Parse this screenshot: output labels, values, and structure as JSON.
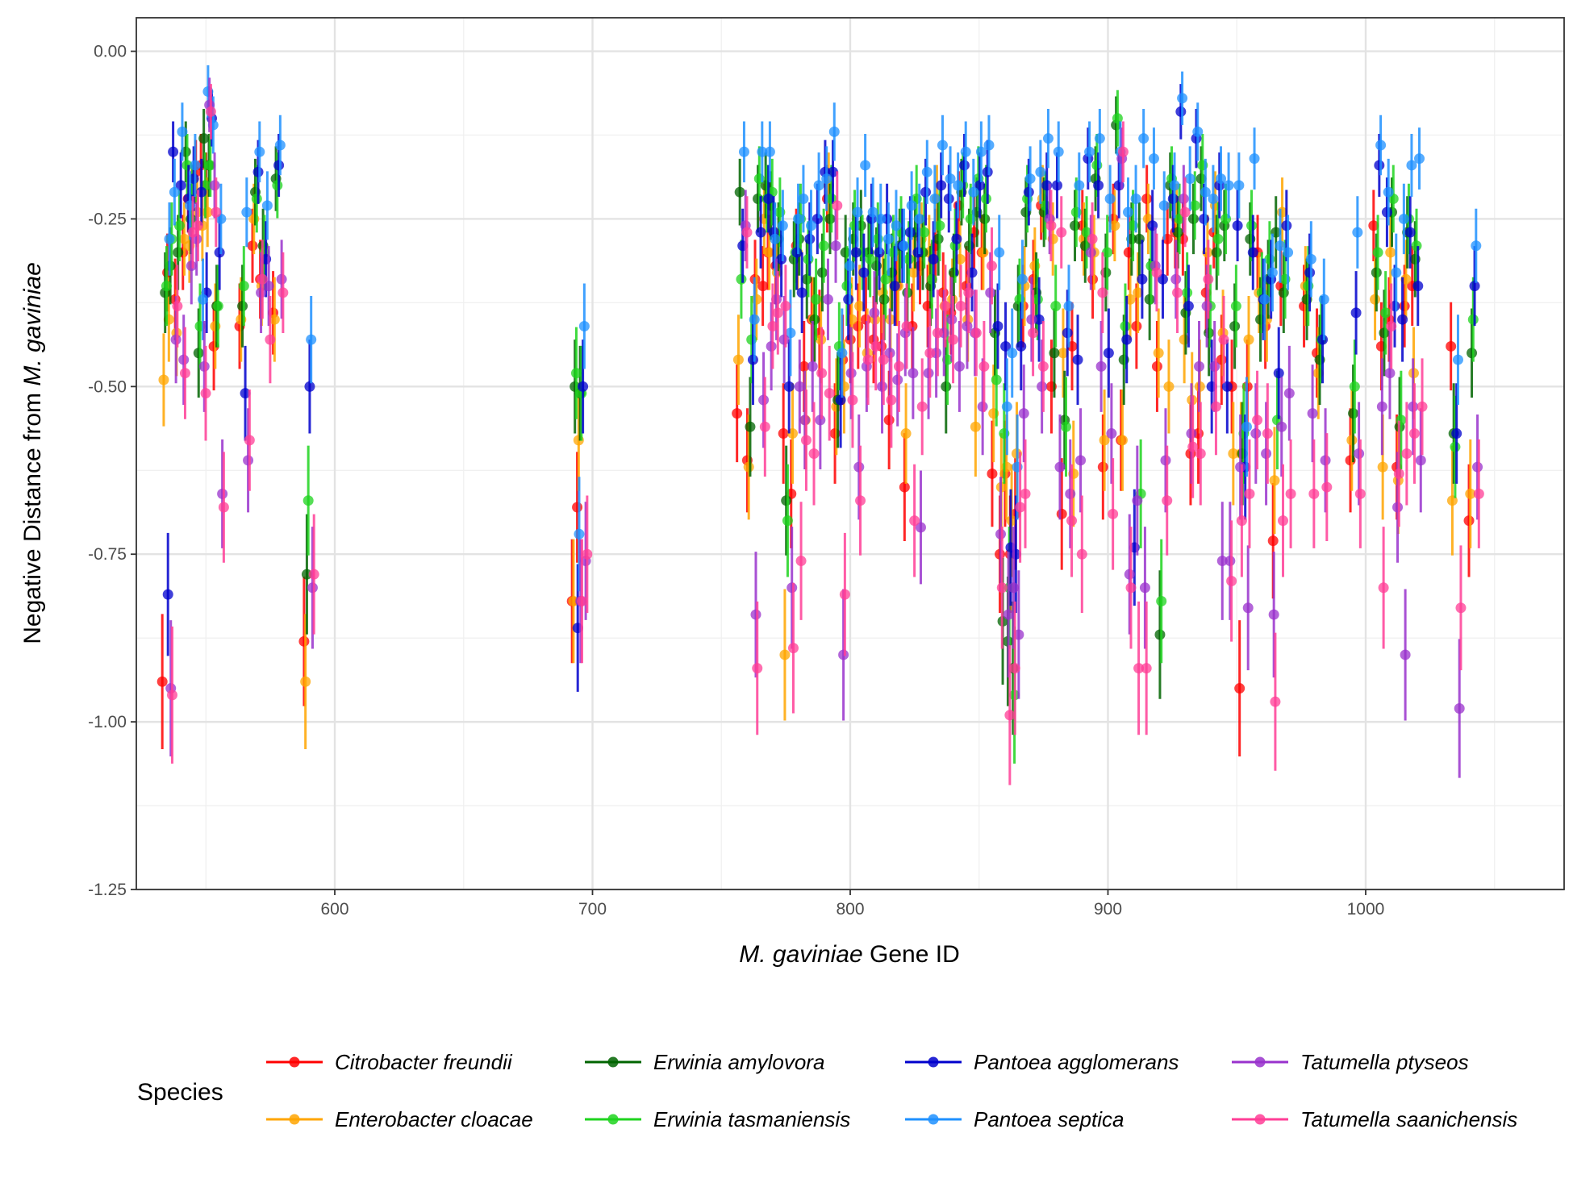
{
  "chart_data": {
    "type": "scatter",
    "description_style": "point estimates with vertical error bars",
    "xlabel_italic": "M. gaviniae",
    "xlabel_rest": "Gene ID",
    "ylabel_plain": "Negative Distance from",
    "ylabel_italic": "M. gaviniae",
    "xlim": [
      523,
      1077
    ],
    "ylim": [
      -1.25,
      0.05
    ],
    "x_ticks": [
      600,
      700,
      800,
      900,
      1000
    ],
    "y_ticks": [
      0.0,
      -0.25,
      -0.5,
      -0.75,
      -1.0,
      -1.25
    ],
    "y_tick_labels": [
      "0.00",
      "-0.25",
      "-0.50",
      "-0.75",
      "-1.00",
      "-1.25"
    ],
    "grid": true,
    "legend_position": "bottom",
    "legend_title": "Species",
    "gene_x": [
      535,
      537,
      540,
      543,
      545,
      548,
      550,
      552,
      555,
      565,
      570,
      573,
      578,
      590,
      694,
      696,
      758,
      762,
      765,
      768,
      770,
      773,
      776,
      779,
      781,
      784,
      787,
      790,
      793,
      796,
      799,
      802,
      805,
      808,
      811,
      814,
      817,
      820,
      823,
      826,
      829,
      832,
      835,
      838,
      841,
      844,
      847,
      850,
      853,
      857,
      860,
      862,
      864,
      866,
      869,
      873,
      876,
      880,
      884,
      888,
      892,
      896,
      900,
      904,
      907,
      910,
      913,
      917,
      921,
      925,
      928,
      931,
      934,
      937,
      940,
      943,
      946,
      950,
      953,
      956,
      960,
      963,
      966,
      969,
      978,
      983,
      996,
      1005,
      1008,
      1011,
      1014,
      1017,
      1020,
      1035,
      1042
    ],
    "series": [
      {
        "name": "Citrobacter freundii",
        "color": "#FF0000",
        "values": [
          -0.94,
          -0.33,
          -0.37,
          -0.3,
          -0.22,
          -0.18,
          -0.17,
          -0.2,
          -0.44,
          -0.41,
          -0.29,
          -0.34,
          -0.39,
          -0.88,
          -0.82,
          -0.68,
          -0.54,
          -0.61,
          -0.34,
          -0.35,
          -0.3,
          -0.32,
          -0.57,
          -0.66,
          -0.29,
          -0.47,
          -0.4,
          -0.42,
          -0.22,
          -0.57,
          -0.46,
          -0.43,
          -0.41,
          -0.4,
          -0.43,
          -0.44,
          -0.55,
          -0.35,
          -0.65,
          -0.41,
          -0.32,
          -0.38,
          -0.29,
          -0.36,
          -0.39,
          -0.23,
          -0.35,
          -0.27,
          -0.3,
          -0.63,
          -0.75,
          -0.63,
          -0.75,
          -0.69,
          -0.38,
          -0.34,
          -0.23,
          -0.5,
          -0.69,
          -0.44,
          -0.26,
          -0.34,
          -0.62,
          -0.25,
          -0.58,
          -0.3,
          -0.41,
          -0.22,
          -0.47,
          -0.28,
          -0.27,
          -0.28,
          -0.6,
          -0.57,
          -0.36,
          -0.27,
          -0.46,
          -0.5,
          -0.95,
          -0.5,
          -0.3,
          -0.41,
          -0.73,
          -0.35,
          -0.38,
          -0.45,
          -0.61,
          -0.26,
          -0.44,
          -0.4,
          -0.62,
          -0.38,
          -0.35,
          -0.44,
          -0.7
        ]
      },
      {
        "name": "Enterobacter cloacae",
        "color": "#FFA500",
        "values": [
          -0.49,
          -0.4,
          -0.42,
          -0.28,
          -0.29,
          -0.24,
          -0.26,
          -0.24,
          -0.41,
          -0.4,
          -0.25,
          -0.35,
          -0.4,
          -0.94,
          -0.82,
          -0.58,
          -0.46,
          -0.62,
          -0.37,
          -0.25,
          -0.3,
          -0.33,
          -0.9,
          -0.57,
          -0.3,
          -0.55,
          -0.4,
          -0.43,
          -0.2,
          -0.53,
          -0.5,
          -0.4,
          -0.38,
          -0.45,
          -0.4,
          -0.36,
          -0.4,
          -0.35,
          -0.57,
          -0.33,
          -0.28,
          -0.3,
          -0.22,
          -0.38,
          -0.37,
          -0.31,
          -0.4,
          -0.56,
          -0.3,
          -0.54,
          -0.65,
          -0.62,
          -0.7,
          -0.6,
          -0.35,
          -0.32,
          -0.22,
          -0.28,
          -0.45,
          -0.63,
          -0.28,
          -0.3,
          -0.58,
          -0.26,
          -0.58,
          -0.37,
          -0.36,
          -0.25,
          -0.45,
          -0.5,
          -0.25,
          -0.43,
          -0.52,
          -0.5,
          -0.3,
          -0.23,
          -0.42,
          -0.6,
          -0.6,
          -0.43,
          -0.36,
          -0.4,
          -0.64,
          -0.24,
          -0.35,
          -0.48,
          -0.58,
          -0.37,
          -0.62,
          -0.3,
          -0.64,
          -0.34,
          -0.48,
          -0.67,
          -0.66
        ]
      },
      {
        "name": "Erwinia amylovora",
        "color": "#006400",
        "values": [
          -0.36,
          -0.32,
          -0.3,
          -0.15,
          -0.25,
          -0.45,
          -0.13,
          -0.17,
          -0.38,
          -0.38,
          -0.21,
          -0.29,
          -0.19,
          -0.78,
          -0.5,
          -0.51,
          -0.21,
          -0.56,
          -0.22,
          -0.2,
          -0.23,
          -0.28,
          -0.67,
          -0.31,
          -0.28,
          -0.34,
          -0.4,
          -0.33,
          -0.25,
          -0.52,
          -0.3,
          -0.28,
          -0.26,
          -0.3,
          -0.32,
          -0.37,
          -0.33,
          -0.29,
          -0.36,
          -0.27,
          -0.3,
          -0.35,
          -0.28,
          -0.5,
          -0.33,
          -0.21,
          -0.29,
          -0.24,
          -0.25,
          -0.42,
          -0.85,
          -0.88,
          -0.92,
          -0.38,
          -0.24,
          -0.36,
          -0.24,
          -0.45,
          -0.55,
          -0.26,
          -0.29,
          -0.19,
          -0.33,
          -0.11,
          -0.46,
          -0.28,
          -0.28,
          -0.37,
          -0.87,
          -0.2,
          -0.27,
          -0.39,
          -0.25,
          -0.19,
          -0.42,
          -0.3,
          -0.26,
          -0.41,
          -0.6,
          -0.28,
          -0.4,
          -0.34,
          -0.27,
          -0.36,
          -0.37,
          -0.46,
          -0.54,
          -0.33,
          -0.42,
          -0.24,
          -0.56,
          -0.27,
          -0.31,
          -0.57,
          -0.45
        ]
      },
      {
        "name": "Erwinia tasmaniensis",
        "color": "#1ED31E",
        "values": [
          -0.35,
          -0.28,
          -0.26,
          -0.17,
          -0.22,
          -0.41,
          -0.2,
          -0.17,
          -0.38,
          -0.35,
          -0.22,
          -0.3,
          -0.2,
          -0.67,
          -0.48,
          -0.51,
          -0.34,
          -0.43,
          -0.19,
          -0.22,
          -0.21,
          -0.24,
          -0.7,
          -0.3,
          -0.25,
          -0.31,
          -0.37,
          -0.29,
          -0.22,
          -0.44,
          -0.35,
          -0.26,
          -0.3,
          -0.31,
          -0.28,
          -0.34,
          -0.3,
          -0.27,
          -0.31,
          -0.22,
          -0.27,
          -0.34,
          -0.26,
          -0.46,
          -0.29,
          -0.2,
          -0.25,
          -0.19,
          -0.22,
          -0.49,
          -0.57,
          -0.8,
          -0.96,
          -0.37,
          -0.22,
          -0.37,
          -0.23,
          -0.38,
          -0.56,
          -0.24,
          -0.27,
          -0.17,
          -0.3,
          -0.1,
          -0.41,
          -0.26,
          -0.66,
          -0.32,
          -0.82,
          -0.19,
          -0.25,
          -0.36,
          -0.23,
          -0.17,
          -0.38,
          -0.28,
          -0.25,
          -0.38,
          -0.57,
          -0.26,
          -0.36,
          -0.31,
          -0.55,
          -0.34,
          -0.35,
          -0.43,
          -0.5,
          -0.3,
          -0.39,
          -0.22,
          -0.55,
          -0.25,
          -0.29,
          -0.59,
          -0.4
        ]
      },
      {
        "name": "Pantoea agglomerans",
        "color": "#0000CD",
        "values": [
          -0.81,
          -0.15,
          -0.2,
          -0.22,
          -0.19,
          -0.21,
          -0.36,
          -0.1,
          -0.3,
          -0.51,
          -0.18,
          -0.31,
          -0.17,
          -0.5,
          -0.86,
          -0.5,
          -0.29,
          -0.46,
          -0.27,
          -0.22,
          -0.27,
          -0.31,
          -0.5,
          -0.3,
          -0.36,
          -0.28,
          -0.25,
          -0.18,
          -0.18,
          -0.52,
          -0.37,
          -0.3,
          -0.33,
          -0.25,
          -0.3,
          -0.25,
          -0.35,
          -0.29,
          -0.27,
          -0.3,
          -0.21,
          -0.31,
          -0.2,
          -0.22,
          -0.28,
          -0.17,
          -0.33,
          -0.2,
          -0.18,
          -0.41,
          -0.44,
          -0.74,
          -0.75,
          -0.44,
          -0.21,
          -0.4,
          -0.2,
          -0.2,
          -0.42,
          -0.46,
          -0.16,
          -0.2,
          -0.45,
          -0.2,
          -0.43,
          -0.74,
          -0.34,
          -0.26,
          -0.34,
          -0.22,
          -0.09,
          -0.38,
          -0.13,
          -0.25,
          -0.5,
          -0.2,
          -0.5,
          -0.26,
          -0.62,
          -0.3,
          -0.37,
          -0.34,
          -0.48,
          -0.26,
          -0.33,
          -0.43,
          -0.39,
          -0.17,
          -0.24,
          -0.38,
          -0.4,
          -0.27,
          -0.35,
          -0.57,
          -0.35
        ]
      },
      {
        "name": "Pantoea septica",
        "color": "#1E90FF",
        "values": [
          -0.28,
          -0.21,
          -0.12,
          -0.23,
          -0.17,
          -0.37,
          -0.06,
          -0.11,
          -0.25,
          -0.24,
          -0.15,
          -0.23,
          -0.14,
          -0.43,
          -0.72,
          -0.41,
          -0.15,
          -0.4,
          -0.15,
          -0.15,
          -0.28,
          -0.26,
          -0.42,
          -0.25,
          -0.22,
          -0.26,
          -0.2,
          -0.19,
          -0.12,
          -0.45,
          -0.32,
          -0.24,
          -0.17,
          -0.24,
          -0.25,
          -0.28,
          -0.26,
          -0.29,
          -0.23,
          -0.25,
          -0.18,
          -0.22,
          -0.14,
          -0.19,
          -0.2,
          -0.15,
          -0.21,
          -0.15,
          -0.14,
          -0.3,
          -0.53,
          -0.45,
          -0.62,
          -0.34,
          -0.19,
          -0.18,
          -0.13,
          -0.15,
          -0.38,
          -0.2,
          -0.15,
          -0.13,
          -0.22,
          -0.15,
          -0.24,
          -0.22,
          -0.13,
          -0.16,
          -0.23,
          -0.2,
          -0.07,
          -0.19,
          -0.12,
          -0.21,
          -0.22,
          -0.19,
          -0.2,
          -0.2,
          -0.56,
          -0.16,
          -0.37,
          -0.33,
          -0.29,
          -0.3,
          -0.31,
          -0.37,
          -0.27,
          -0.14,
          -0.21,
          -0.33,
          -0.25,
          -0.17,
          -0.16,
          -0.46,
          -0.29
        ]
      },
      {
        "name": "Tatumella ptyseos",
        "color": "#9932CC",
        "values": [
          -0.95,
          -0.43,
          -0.46,
          -0.32,
          -0.28,
          -0.47,
          -0.08,
          -0.2,
          -0.66,
          -0.61,
          -0.36,
          -0.35,
          -0.34,
          -0.8,
          -0.82,
          -0.76,
          -0.26,
          -0.84,
          -0.52,
          -0.44,
          -0.37,
          -0.43,
          -0.8,
          -0.5,
          -0.55,
          -0.47,
          -0.55,
          -0.37,
          -0.29,
          -0.9,
          -0.48,
          -0.62,
          -0.47,
          -0.39,
          -0.5,
          -0.45,
          -0.49,
          -0.42,
          -0.48,
          -0.71,
          -0.48,
          -0.45,
          -0.42,
          -0.4,
          -0.47,
          -0.41,
          -0.42,
          -0.53,
          -0.36,
          -0.72,
          -0.84,
          -0.8,
          -0.87,
          -0.54,
          -0.4,
          -0.5,
          -0.25,
          -0.62,
          -0.66,
          -0.61,
          -0.3,
          -0.47,
          -0.57,
          -0.16,
          -0.78,
          -0.67,
          -0.8,
          -0.32,
          -0.61,
          -0.34,
          -0.22,
          -0.57,
          -0.47,
          -0.38,
          -0.47,
          -0.76,
          -0.76,
          -0.62,
          -0.83,
          -0.57,
          -0.6,
          -0.84,
          -0.56,
          -0.51,
          -0.54,
          -0.61,
          -0.6,
          -0.53,
          -0.48,
          -0.68,
          -0.9,
          -0.53,
          -0.61,
          -0.98,
          -0.62
        ]
      },
      {
        "name": "Tatumella saanichensis",
        "color": "#FF3E96",
        "values": [
          -0.96,
          -0.38,
          -0.48,
          -0.27,
          -0.26,
          -0.51,
          -0.09,
          -0.24,
          -0.68,
          -0.58,
          -0.34,
          -0.43,
          -0.36,
          -0.78,
          -0.82,
          -0.75,
          -0.27,
          -0.92,
          -0.56,
          -0.41,
          -0.39,
          -0.38,
          -0.89,
          -0.76,
          -0.58,
          -0.6,
          -0.48,
          -0.51,
          -0.23,
          -0.81,
          -0.52,
          -0.67,
          -0.46,
          -0.44,
          -0.46,
          -0.52,
          -0.47,
          -0.41,
          -0.7,
          -0.53,
          -0.45,
          -0.42,
          -0.38,
          -0.43,
          -0.38,
          -0.36,
          -0.42,
          -0.47,
          -0.32,
          -0.8,
          -0.99,
          -0.92,
          -0.68,
          -0.66,
          -0.42,
          -0.47,
          -0.26,
          -0.27,
          -0.7,
          -0.75,
          -0.28,
          -0.36,
          -0.69,
          -0.15,
          -0.8,
          -0.92,
          -0.92,
          -0.33,
          -0.67,
          -0.36,
          -0.24,
          -0.59,
          -0.6,
          -0.34,
          -0.53,
          -0.43,
          -0.79,
          -0.7,
          -0.66,
          -0.55,
          -0.57,
          -0.97,
          -0.7,
          -0.66,
          -0.66,
          -0.65,
          -0.66,
          -0.8,
          -0.41,
          -0.63,
          -0.6,
          -0.57,
          -0.53,
          -0.83,
          -0.66
        ]
      }
    ]
  }
}
